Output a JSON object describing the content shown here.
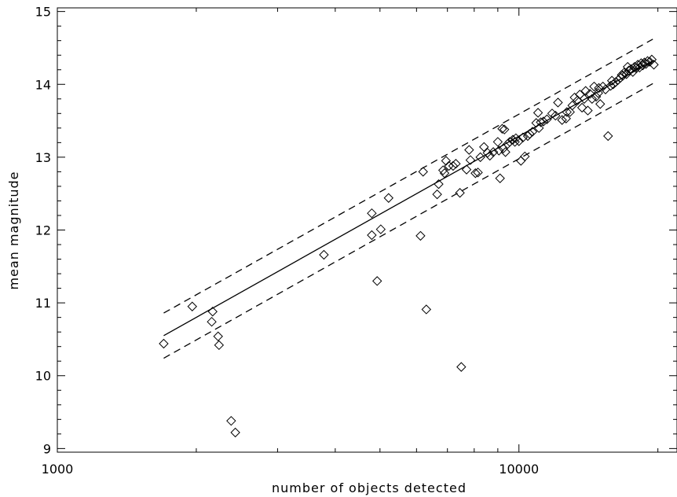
{
  "chart_data": {
    "type": "scatter",
    "title": "",
    "xlabel": "number of objects detected",
    "ylabel": "mean magnitude",
    "x_scale": "log",
    "xlim": [
      1000,
      22000
    ],
    "ylim": [
      8.95,
      15.05
    ],
    "x_ticks": [
      {
        "value": 1000,
        "label": "1000"
      },
      {
        "value": 10000,
        "label": "10000"
      }
    ],
    "y_ticks": [
      {
        "value": 9,
        "label": "9"
      },
      {
        "value": 10,
        "label": "10"
      },
      {
        "value": 11,
        "label": "11"
      },
      {
        "value": 12,
        "label": "12"
      },
      {
        "value": 13,
        "label": "13"
      },
      {
        "value": 14,
        "label": "14"
      },
      {
        "value": 15,
        "label": "15"
      }
    ],
    "grid": false,
    "legend": null,
    "marker": "diamond",
    "color": "#000000",
    "fit_line": {
      "style": "solid",
      "x": [
        1700,
        19500
      ],
      "y": [
        10.55,
        14.32
      ]
    },
    "upper_bound": {
      "style": "dashed",
      "x": [
        1700,
        19500
      ],
      "y": [
        10.86,
        14.62
      ]
    },
    "lower_bound": {
      "style": "dashed",
      "x": [
        1700,
        19500
      ],
      "y": [
        10.24,
        14.01
      ]
    },
    "points": [
      [
        1700,
        10.44
      ],
      [
        1960,
        10.95
      ],
      [
        2170,
        10.88
      ],
      [
        2160,
        10.74
      ],
      [
        2230,
        10.54
      ],
      [
        2240,
        10.42
      ],
      [
        2380,
        9.38
      ],
      [
        2430,
        9.22
      ],
      [
        3780,
        11.66
      ],
      [
        4800,
        12.23
      ],
      [
        4800,
        11.93
      ],
      [
        4930,
        11.3
      ],
      [
        5020,
        12.01
      ],
      [
        5220,
        12.44
      ],
      [
        6120,
        11.92
      ],
      [
        6200,
        12.8
      ],
      [
        6300,
        10.91
      ],
      [
        6650,
        12.49
      ],
      [
        6700,
        12.63
      ],
      [
        6850,
        12.82
      ],
      [
        6950,
        12.95
      ],
      [
        7050,
        12.88
      ],
      [
        7300,
        12.91
      ],
      [
        7450,
        12.51
      ],
      [
        7500,
        10.12
      ],
      [
        7700,
        12.83
      ],
      [
        7800,
        13.1
      ],
      [
        7850,
        12.96
      ],
      [
        8050,
        12.78
      ],
      [
        8150,
        12.79
      ],
      [
        8400,
        13.14
      ],
      [
        8650,
        13.02
      ],
      [
        8800,
        13.07
      ],
      [
        9000,
        13.21
      ],
      [
        9100,
        12.71
      ],
      [
        9200,
        13.39
      ],
      [
        9300,
        13.38
      ],
      [
        9250,
        13.12
      ],
      [
        9350,
        13.07
      ],
      [
        9450,
        13.18
      ],
      [
        9550,
        13.21
      ],
      [
        9700,
        13.24
      ],
      [
        9850,
        13.26
      ],
      [
        10000,
        13.22
      ],
      [
        10100,
        12.95
      ],
      [
        10200,
        13.27
      ],
      [
        10300,
        13.01
      ],
      [
        10450,
        13.29
      ],
      [
        10550,
        13.32
      ],
      [
        10700,
        13.35
      ],
      [
        11000,
        13.61
      ],
      [
        11050,
        13.4
      ],
      [
        11150,
        13.48
      ],
      [
        11300,
        13.49
      ],
      [
        11500,
        13.52
      ],
      [
        12000,
        13.57
      ],
      [
        12150,
        13.75
      ],
      [
        12400,
        13.51
      ],
      [
        12650,
        13.53
      ],
      [
        12900,
        13.62
      ],
      [
        13050,
        13.71
      ],
      [
        13200,
        13.82
      ],
      [
        13400,
        13.78
      ],
      [
        13550,
        13.86
      ],
      [
        13700,
        13.68
      ],
      [
        13850,
        13.8
      ],
      [
        13950,
        13.91
      ],
      [
        14100,
        13.64
      ],
      [
        14250,
        13.87
      ],
      [
        14400,
        13.8
      ],
      [
        14550,
        13.97
      ],
      [
        14700,
        13.83
      ],
      [
        14850,
        13.88
      ],
      [
        15000,
        13.73
      ],
      [
        15200,
        13.97
      ],
      [
        15400,
        13.93
      ],
      [
        15600,
        13.29
      ],
      [
        15800,
        13.98
      ],
      [
        16000,
        14.0
      ],
      [
        16200,
        14.03
      ],
      [
        16400,
        14.06
      ],
      [
        16600,
        14.09
      ],
      [
        16800,
        14.12
      ],
      [
        16900,
        14.16
      ],
      [
        17100,
        14.14
      ],
      [
        17300,
        14.19
      ],
      [
        17500,
        14.21
      ],
      [
        17650,
        14.17
      ],
      [
        17800,
        14.24
      ],
      [
        17950,
        14.22
      ],
      [
        18100,
        14.27
      ],
      [
        18250,
        14.23
      ],
      [
        18400,
        14.29
      ],
      [
        18550,
        14.26
      ],
      [
        18700,
        14.3
      ],
      [
        18850,
        14.28
      ],
      [
        19000,
        14.32
      ],
      [
        19200,
        14.31
      ],
      [
        19400,
        14.34
      ],
      [
        19600,
        14.27
      ],
      [
        17200,
        14.24
      ],
      [
        16700,
        14.13
      ],
      [
        15900,
        14.05
      ],
      [
        14900,
        13.95
      ],
      [
        12700,
        13.62
      ],
      [
        11800,
        13.6
      ],
      [
        10900,
        13.47
      ],
      [
        9800,
        13.21
      ],
      [
        9050,
        13.09
      ],
      [
        8550,
        13.06
      ],
      [
        8250,
        13.0
      ],
      [
        7200,
        12.88
      ],
      [
        6900,
        12.78
      ]
    ]
  }
}
